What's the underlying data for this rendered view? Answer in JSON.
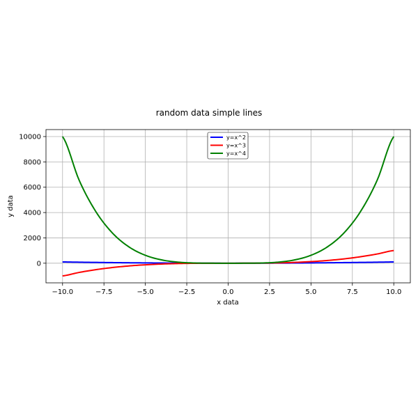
{
  "chart_data": {
    "type": "line",
    "title": "random data simple lines",
    "xlabel": "x data",
    "ylabel": "y data",
    "xlim": [
      -11,
      11
    ],
    "ylim": [
      -1550,
      10550
    ],
    "x_ticks": [
      -10.0,
      -7.5,
      -5.0,
      -2.5,
      0.0,
      2.5,
      5.0,
      7.5,
      10.0
    ],
    "x_tick_labels": [
      "−10.0",
      "−7.5",
      "−5.0",
      "−2.5",
      "0.0",
      "2.5",
      "5.0",
      "7.5",
      "10.0"
    ],
    "y_ticks": [
      0,
      2000,
      4000,
      6000,
      8000,
      10000
    ],
    "y_tick_labels": [
      "0",
      "2000",
      "4000",
      "6000",
      "8000",
      "10000"
    ],
    "grid": true,
    "legend_position": "top-center",
    "x": [
      -10,
      -9,
      -8,
      -7,
      -6,
      -5,
      -4,
      -3,
      -2,
      -1,
      0,
      1,
      2,
      3,
      4,
      5,
      6,
      7,
      8,
      9,
      10
    ],
    "series": [
      {
        "name": "y=x^2",
        "color": "#0000ff",
        "values": [
          100,
          81,
          64,
          49,
          36,
          25,
          16,
          9,
          4,
          1,
          0,
          1,
          4,
          9,
          16,
          25,
          36,
          49,
          64,
          81,
          100
        ]
      },
      {
        "name": "y=x^3",
        "color": "#ff0000",
        "values": [
          -1000,
          -729,
          -512,
          -343,
          -216,
          -125,
          -64,
          -27,
          -8,
          -1,
          0,
          1,
          8,
          27,
          64,
          125,
          216,
          343,
          512,
          729,
          1000
        ]
      },
      {
        "name": "y=x^4",
        "color": "#008000",
        "values": [
          10000,
          6561,
          4096,
          2401,
          1296,
          625,
          256,
          81,
          16,
          1,
          0,
          1,
          16,
          81,
          256,
          625,
          1296,
          2401,
          4096,
          6561,
          10000
        ]
      }
    ]
  }
}
